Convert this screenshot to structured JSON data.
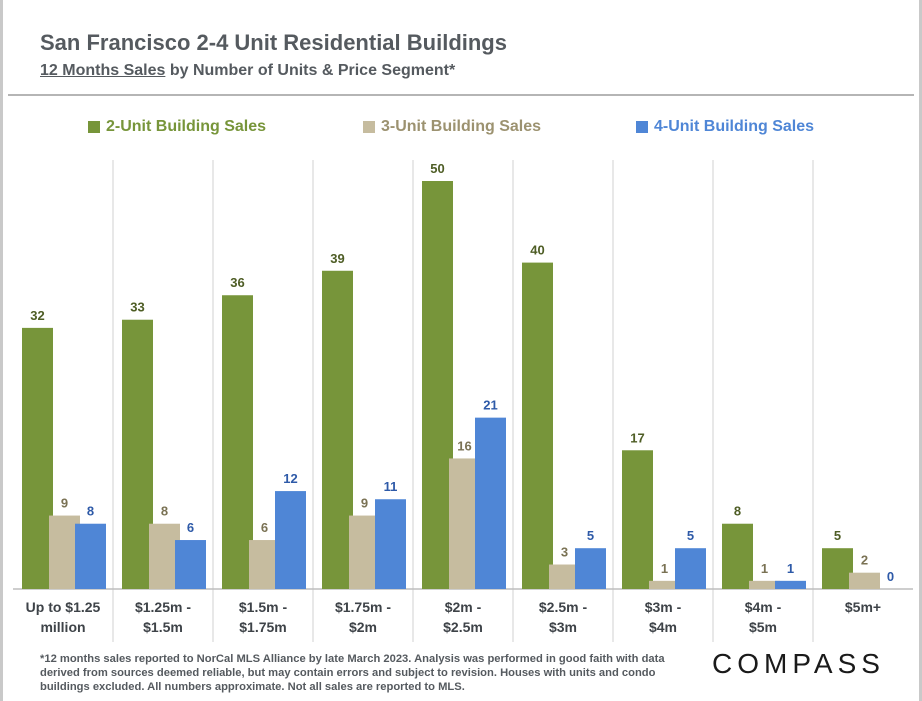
{
  "header": {
    "title": "San Francisco 2-4 Unit Residential Buildings",
    "subtitle_underlined": "12 Months Sales",
    "subtitle_rest": " by Number of Units & Price Segment*"
  },
  "colors": {
    "two_unit": "#77953a",
    "three_unit": "#c6bc9f",
    "four_unit": "#4f86d6",
    "two_unit_label": "#4e5d25",
    "three_unit_label": "#7a7254",
    "four_unit_label": "#2e5aa8"
  },
  "chart_data": {
    "type": "bar",
    "title": "San Francisco 2-4 Unit Residential Buildings",
    "categories": [
      [
        "Up to $1.25",
        "million"
      ],
      [
        "$1.25m -",
        "$1.5m"
      ],
      [
        "$1.5m -",
        "$1.75m"
      ],
      [
        "$1.75m -",
        "$2m"
      ],
      [
        "$2m -",
        "$2.5m"
      ],
      [
        "$2.5m -",
        "$3m"
      ],
      [
        "$3m -",
        "$4m"
      ],
      [
        "$4m -",
        "$5m"
      ],
      [
        "$5m+"
      ]
    ],
    "series": [
      {
        "name": "2-Unit Building Sales",
        "values": [
          32,
          33,
          36,
          39,
          50,
          40,
          17,
          8,
          5
        ]
      },
      {
        "name": "3-Unit Building Sales",
        "values": [
          9,
          8,
          6,
          9,
          16,
          3,
          1,
          1,
          2
        ]
      },
      {
        "name": "4-Unit Building Sales",
        "values": [
          8,
          6,
          12,
          11,
          21,
          5,
          5,
          1,
          0
        ]
      }
    ],
    "ylim": [
      0,
      50
    ],
    "xlabel": "",
    "ylabel": "",
    "legend": "top",
    "grid": false
  },
  "footnote": "*12 months sales reported to NorCal MLS Alliance by late March 2023. Analysis was performed in good faith with data derived from sources deemed reliable, but may contain errors and subject to revision. Houses with units and condo buildings excluded. All numbers approximate. Not all sales are reported to MLS.",
  "logo": "COMPASS"
}
